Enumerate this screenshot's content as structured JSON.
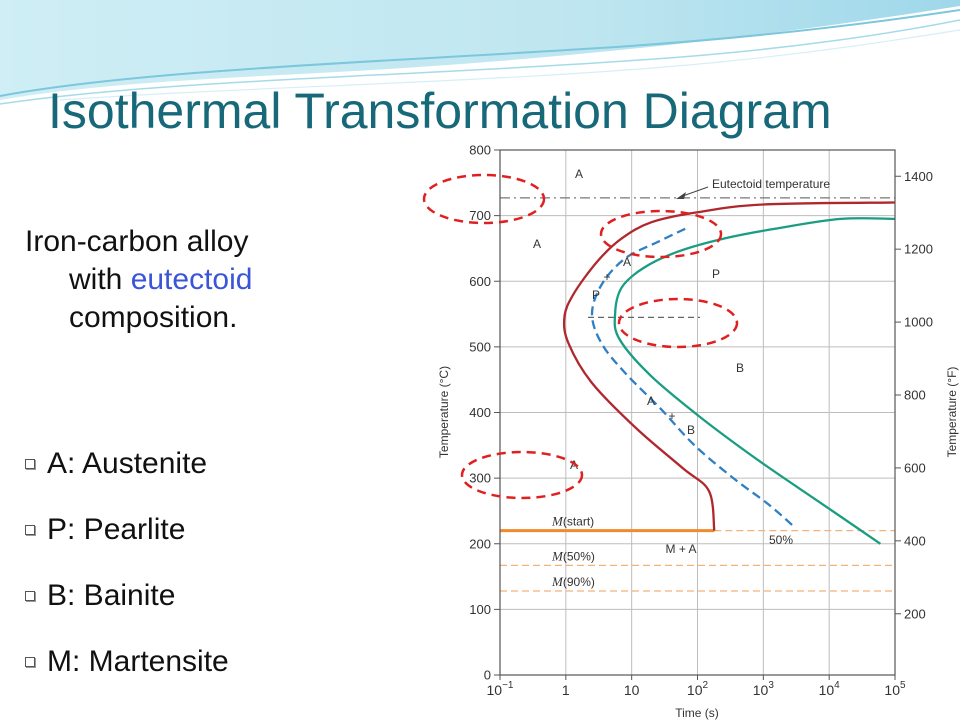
{
  "slide": {
    "title": "Isothermal Transformation Diagram",
    "intro": {
      "line1": "Iron-carbon alloy",
      "line2_before": "with ",
      "line2_highlight": "eutectoid",
      "line3": "composition."
    },
    "legend": [
      {
        "label": "A: Austenite"
      },
      {
        "label": "P: Pearlite"
      },
      {
        "label": "B: Bainite"
      },
      {
        "label": "M: Martensite"
      }
    ],
    "colors": {
      "title": "#17697a",
      "highlight": "#3a55d8",
      "start_curve": "#b0282d",
      "fifty_curve": "#2f7fc4",
      "finish_curve": "#1a9d82",
      "martensite": "#f08a2a",
      "annotation_ring": "#e02020"
    }
  },
  "diagram": {
    "x_axis": {
      "label": "Time (s)",
      "scale": "log",
      "range": [
        0.1,
        100000
      ],
      "ticks": [
        {
          "base": "10",
          "exp": "−1"
        },
        {
          "base": "1",
          "exp": ""
        },
        {
          "base": "10",
          "exp": ""
        },
        {
          "base": "10",
          "exp": "2"
        },
        {
          "base": "10",
          "exp": "3"
        },
        {
          "base": "10",
          "exp": "4"
        },
        {
          "base": "10",
          "exp": "5"
        }
      ]
    },
    "y_axis_left": {
      "label": "Temperature (°C)",
      "range": [
        0,
        800
      ],
      "ticks": [
        "0",
        "100",
        "200",
        "300",
        "400",
        "500",
        "600",
        "700",
        "800"
      ]
    },
    "y_axis_right": {
      "label": "Temperature (°F)",
      "ticks": [
        "200",
        "400",
        "600",
        "800",
        "1000",
        "1200",
        "1400"
      ]
    },
    "eutectoid": {
      "label": "Eutectoid temperature",
      "temp_c": 727
    },
    "nose_temp_c": 545,
    "martensite_lines": [
      {
        "label": "(start)",
        "temp_c": 220
      },
      {
        "label": "(50%)",
        "temp_c": 167
      },
      {
        "label": "(90%)",
        "temp_c": 128
      }
    ],
    "martensite_symbol": "M",
    "curves": {
      "start": [
        [
          100000,
          720
        ],
        [
          1000,
          717
        ],
        [
          100,
          705
        ],
        [
          20,
          690
        ],
        [
          7,
          665
        ],
        [
          3,
          630
        ],
        [
          1.3,
          580
        ],
        [
          0.95,
          545
        ],
        [
          1.1,
          505
        ],
        [
          2.5,
          445
        ],
        [
          12,
          375
        ],
        [
          60,
          315
        ],
        [
          150,
          280
        ],
        [
          180,
          220
        ]
      ],
      "fifty": [
        [
          65,
          680
        ],
        [
          25,
          660
        ],
        [
          8,
          635
        ],
        [
          3.5,
          595
        ],
        [
          2.5,
          550
        ],
        [
          3.5,
          505
        ],
        [
          8,
          460
        ],
        [
          28,
          405
        ],
        [
          90,
          350
        ],
        [
          350,
          300
        ],
        [
          1200,
          260
        ],
        [
          3000,
          225
        ]
      ],
      "finish": [
        [
          100000,
          695
        ],
        [
          15000,
          695
        ],
        [
          1500,
          680
        ],
        [
          250,
          665
        ],
        [
          50,
          645
        ],
        [
          15,
          620
        ],
        [
          7,
          590
        ],
        [
          5.6,
          550
        ],
        [
          6.5,
          512
        ],
        [
          20,
          455
        ],
        [
          120,
          390
        ],
        [
          900,
          325
        ],
        [
          8000,
          260
        ],
        [
          60000,
          200
        ]
      ]
    },
    "region_labels": {
      "a_top": "A",
      "a_left": "A",
      "p_right": "P",
      "b_right": "B",
      "a_low": "A",
      "ma": "M + A",
      "fifty_percent": "50%",
      "plus_upper": {
        "p": "P",
        "plus": "+",
        "a": "A"
      },
      "plus_lower": {
        "a": "A",
        "plus": "+",
        "b": "B"
      }
    }
  }
}
